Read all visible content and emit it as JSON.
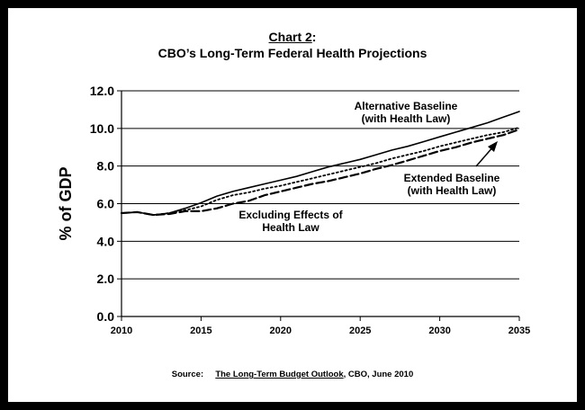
{
  "title": {
    "label": "Chart 2",
    "colon": ":",
    "subtitle": "CBO’s Long-Term Federal Health Projections"
  },
  "source": {
    "label": "Source:",
    "publication": "The Long-Term Budget Outlook",
    "rest": ", CBO, June 2010"
  },
  "chart_data": {
    "type": "line",
    "ylabel": "% of GDP",
    "xlabel": "",
    "xlim": [
      2010,
      2035
    ],
    "ylim": [
      0,
      12
    ],
    "x_ticks": [
      "2010",
      "2015",
      "2020",
      "2025",
      "2030",
      "2035"
    ],
    "y_ticks": [
      "0.0",
      "2.0",
      "4.0",
      "6.0",
      "8.0",
      "10.0",
      "12.0"
    ],
    "grid": "horizontal",
    "x": [
      2010,
      2011,
      2012,
      2013,
      2014,
      2015,
      2016,
      2017,
      2018,
      2019,
      2020,
      2021,
      2022,
      2023,
      2024,
      2025,
      2026,
      2027,
      2028,
      2029,
      2030,
      2031,
      2032,
      2033,
      2034,
      2035
    ],
    "series": [
      {
        "name_lines": [
          "Alternative Baseline",
          "(with Health Law)"
        ],
        "style": "solid",
        "values": [
          5.5,
          5.55,
          5.4,
          5.5,
          5.75,
          6.05,
          6.4,
          6.65,
          6.85,
          7.05,
          7.25,
          7.45,
          7.7,
          7.95,
          8.15,
          8.35,
          8.6,
          8.85,
          9.05,
          9.3,
          9.55,
          9.8,
          10.05,
          10.3,
          10.6,
          10.9
        ]
      },
      {
        "name_lines": [
          "Extended Baseline",
          "(with Health Law)"
        ],
        "style": "dashed",
        "values": [
          5.5,
          5.55,
          5.4,
          5.45,
          5.6,
          5.6,
          5.75,
          6.0,
          6.15,
          6.45,
          6.65,
          6.85,
          7.05,
          7.2,
          7.4,
          7.6,
          7.85,
          8.05,
          8.3,
          8.55,
          8.8,
          9.0,
          9.25,
          9.45,
          9.65,
          9.95
        ]
      },
      {
        "name_lines": [
          "Excluding Effects of",
          "Health Law"
        ],
        "style": "dotted",
        "values": [
          5.5,
          5.55,
          5.4,
          5.5,
          5.65,
          5.85,
          6.2,
          6.45,
          6.6,
          6.8,
          6.95,
          7.15,
          7.35,
          7.55,
          7.75,
          7.95,
          8.15,
          8.4,
          8.6,
          8.8,
          9.05,
          9.25,
          9.45,
          9.65,
          9.8,
          10.05
        ]
      }
    ]
  }
}
